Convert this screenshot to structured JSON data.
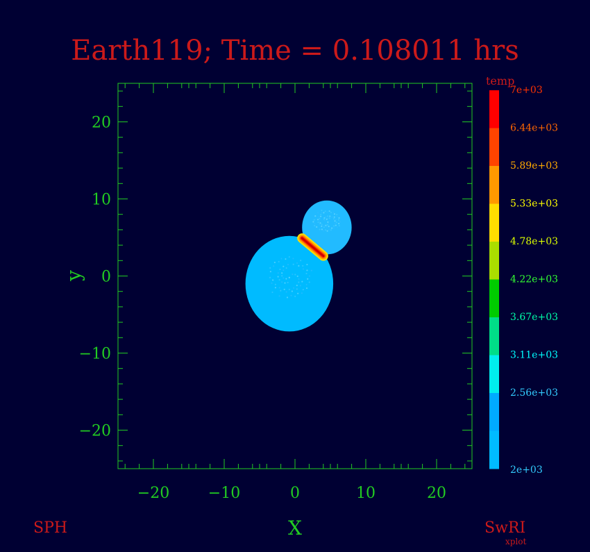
{
  "colors": {
    "background": "#000033",
    "axis": "#22cc22",
    "text_red": "#cc1a1a"
  },
  "chart_data": {
    "type": "scatter",
    "title": "Earth119; Time = 0.108011 hrs",
    "xlabel": "X",
    "ylabel": "y",
    "xlim": [
      -25,
      25
    ],
    "ylim": [
      -25,
      25
    ],
    "xticks": [
      -20,
      -10,
      0,
      10,
      20
    ],
    "yticks": [
      -20,
      -10,
      0,
      10,
      20
    ],
    "xtick_labels": [
      "−20",
      "−10",
      "0",
      "10",
      "20"
    ],
    "ytick_labels": [
      "−20",
      "−10",
      "0",
      "10",
      "20"
    ],
    "grid": false,
    "bodies": [
      {
        "center": [
          -0.8,
          -1.0
        ],
        "radius": 6.2,
        "temp": 2560,
        "color": "#00bbff"
      },
      {
        "center": [
          4.5,
          6.3
        ],
        "radius": 3.5,
        "temp": 2560,
        "color": "#22bbff"
      }
    ],
    "contact_zone": {
      "from": [
        1.0,
        4.9
      ],
      "to": [
        4.0,
        2.6
      ],
      "temp_min": 4780,
      "temp_max": 7000
    },
    "colorbar": {
      "label": "temp",
      "position": "right",
      "levels": [
        {
          "label": "7e+03",
          "color": "#ff0000",
          "text_color": "#ff3300"
        },
        {
          "label": "6.44e+03",
          "color": "#ff4400",
          "text_color": "#ff6600"
        },
        {
          "label": "5.89e+03",
          "color": "#ff9900",
          "text_color": "#ffaa00"
        },
        {
          "label": "5.33e+03",
          "color": "#ffdd00",
          "text_color": "#ffff00"
        },
        {
          "label": "4.78e+03",
          "color": "#aadd00",
          "text_color": "#ddff00"
        },
        {
          "label": "4.22e+03",
          "color": "#00cc00",
          "text_color": "#33ff33"
        },
        {
          "label": "3.67e+03",
          "color": "#00dd88",
          "text_color": "#00ffaa"
        },
        {
          "label": "3.11e+03",
          "color": "#00eeee",
          "text_color": "#00ffff"
        },
        {
          "label": "2.56e+03",
          "color": "#00aaff",
          "text_color": "#33ccff"
        },
        {
          "label": "2e+03",
          "color": "#00bbff",
          "text_color": "#33ccff"
        }
      ]
    }
  },
  "footer": {
    "left": "SPH",
    "right": "SwRI",
    "right_sub": "xplot"
  }
}
